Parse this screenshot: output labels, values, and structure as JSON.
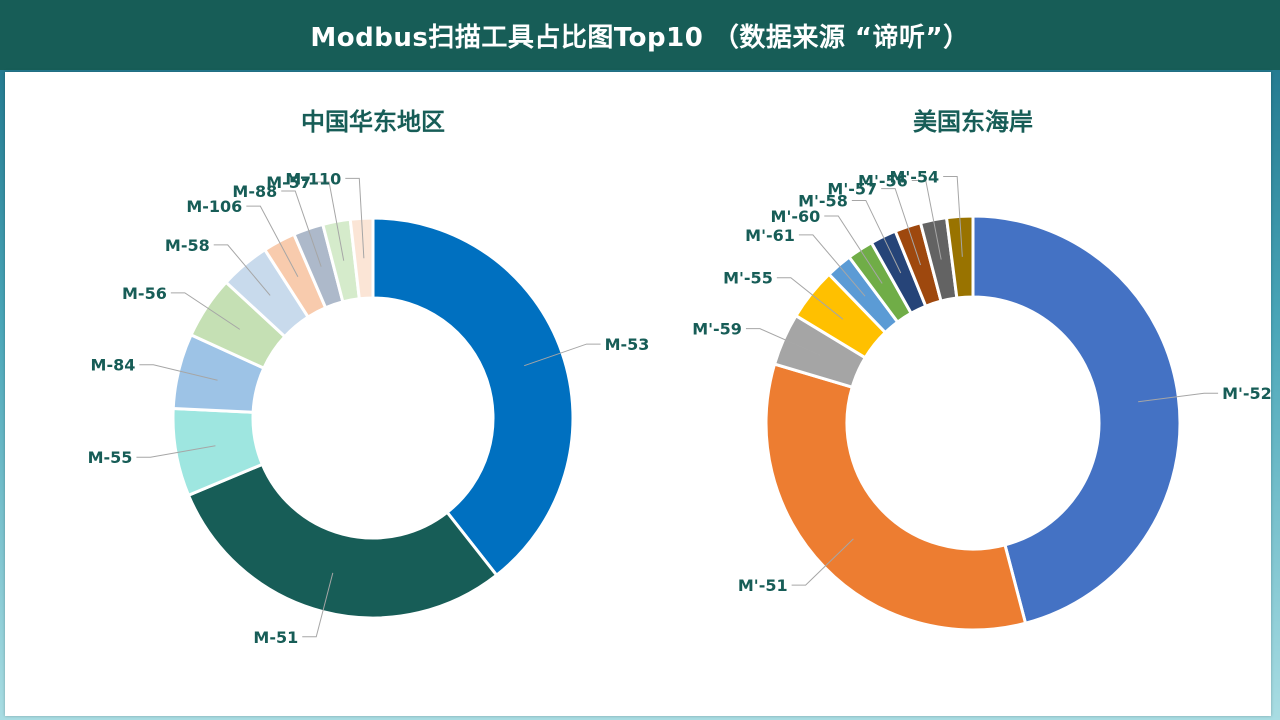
{
  "header": {
    "title": "Modbus扫描工具占比图Top10 （数据来源 “谛听”）"
  },
  "chart_data": [
    {
      "type": "donut",
      "title": "中国华东地区",
      "slices": [
        {
          "label": "M-53",
          "value": 39.0,
          "color": "#0070c0"
        },
        {
          "label": "M-51",
          "value": 29.0,
          "color": "#175d57"
        },
        {
          "label": "M-55",
          "value": 7.0,
          "color": "#9ee6e0"
        },
        {
          "label": "M-84",
          "value": 6.0,
          "color": "#9dc3e6"
        },
        {
          "label": "M-56",
          "value": 5.0,
          "color": "#c5e0b4"
        },
        {
          "label": "M-58",
          "value": 4.0,
          "color": "#c8daec"
        },
        {
          "label": "M-106",
          "value": 2.6,
          "color": "#f8cbad"
        },
        {
          "label": "M-88",
          "value": 2.4,
          "color": "#adb9ca"
        },
        {
          "label": "M-57",
          "value": 2.2,
          "color": "#d5ebcb"
        },
        {
          "label": "M-110",
          "value": 1.8,
          "color": "#fbe5d6"
        }
      ]
    },
    {
      "type": "donut",
      "title": "美国东海岸",
      "slices": [
        {
          "label": "M'-52",
          "value": 45.0,
          "color": "#4472c4"
        },
        {
          "label": "M'-51",
          "value": 33.0,
          "color": "#ed7d31"
        },
        {
          "label": "M'-59",
          "value": 4.0,
          "color": "#a5a5a5"
        },
        {
          "label": "M'-55",
          "value": 4.0,
          "color": "#ffc000"
        },
        {
          "label": "M'-61",
          "value": 2.0,
          "color": "#5b9bd5"
        },
        {
          "label": "M'-60",
          "value": 2.0,
          "color": "#70ad47"
        },
        {
          "label": "M'-58",
          "value": 2.0,
          "color": "#264478"
        },
        {
          "label": "M'-57",
          "value": 2.0,
          "color": "#9e480e"
        },
        {
          "label": "M'-56",
          "value": 2.0,
          "color": "#636363"
        },
        {
          "label": "M'-54",
          "value": 2.0,
          "color": "#997300"
        }
      ]
    }
  ]
}
